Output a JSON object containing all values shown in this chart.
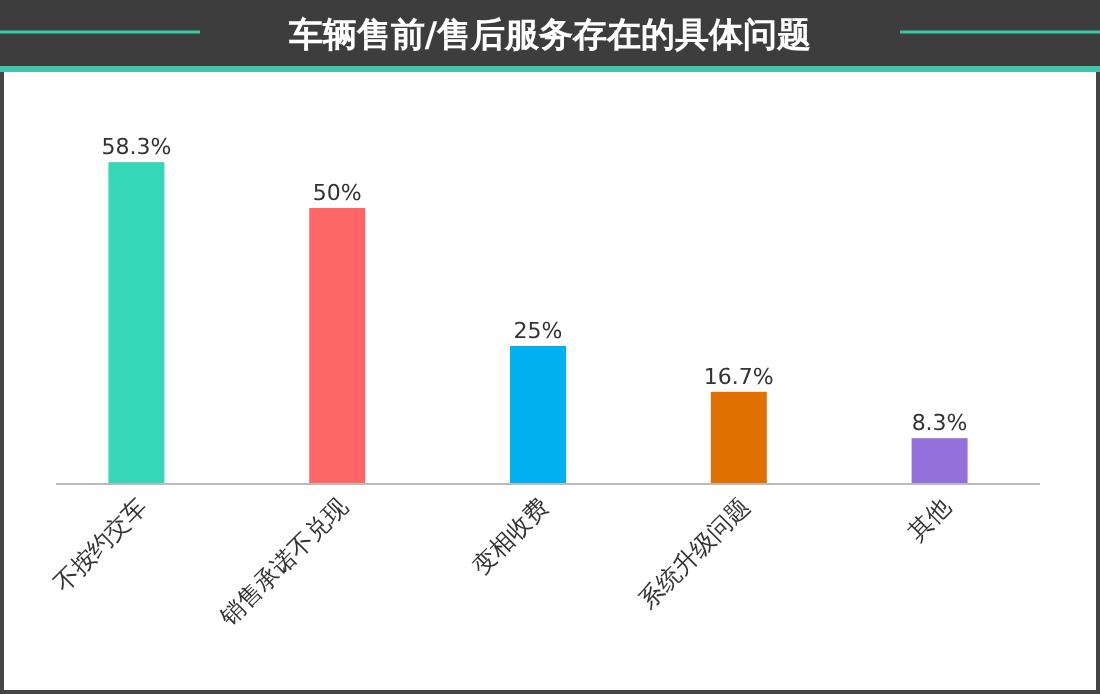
{
  "chart_data": {
    "type": "bar",
    "title": "车辆售前/售后服务存在的具体问题",
    "categories": [
      "不按约交车",
      "销售承诺不兑现",
      "变相收费",
      "系统升级问题",
      "其他"
    ],
    "values": [
      58.3,
      50,
      25,
      16.7,
      8.3
    ],
    "value_labels": [
      "58.3%",
      "50%",
      "25%",
      "16.7%",
      "8.3%"
    ],
    "colors": [
      "#36d6b8",
      "#ff6666",
      "#00b0f0",
      "#e07000",
      "#9370db"
    ]
  }
}
